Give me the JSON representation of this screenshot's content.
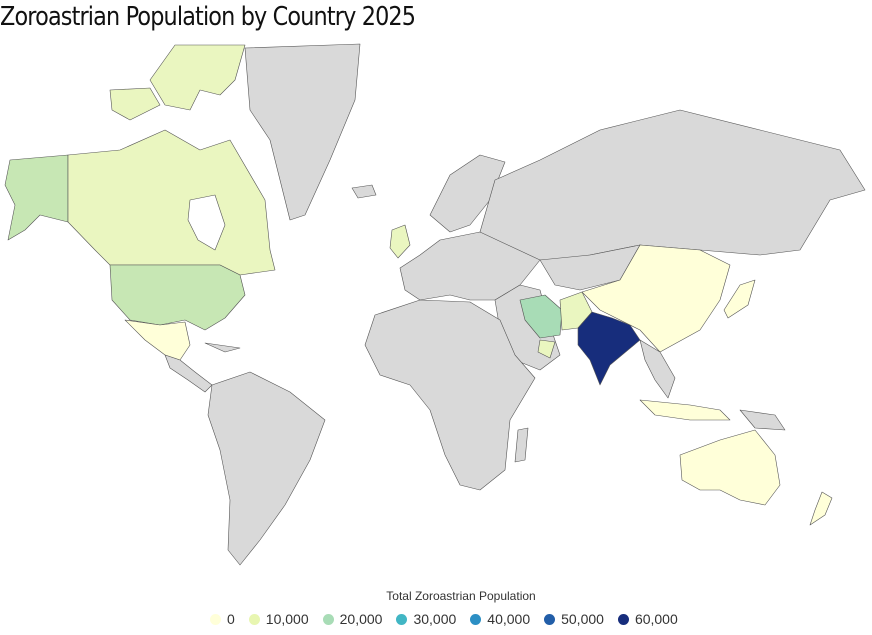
{
  "title": "Zoroastrian Population by Country 2025",
  "legend": {
    "title": "Total Zoroastrian Population",
    "items": [
      {
        "label": "0",
        "color": "#ffffd9"
      },
      {
        "label": "10,000",
        "color": "#e8f6b1"
      },
      {
        "label": "20,000",
        "color": "#a8dcb6"
      },
      {
        "label": "30,000",
        "color": "#41b6c4"
      },
      {
        "label": "40,000",
        "color": "#2c8fc4"
      },
      {
        "label": "50,000",
        "color": "#225ea8"
      },
      {
        "label": "60,000",
        "color": "#172d7c"
      }
    ]
  },
  "map": {
    "no_data_color": "#d9d9d9",
    "regions": [
      {
        "name": "India",
        "color": "#172d7c"
      },
      {
        "name": "Iran",
        "color": "#a8dcb6"
      },
      {
        "name": "United States",
        "color": "#c7e7b4"
      },
      {
        "name": "Alaska",
        "color": "#c7e7b4"
      },
      {
        "name": "Canada",
        "color": "#eaf6c0"
      },
      {
        "name": "United Kingdom",
        "color": "#eaf6c0"
      },
      {
        "name": "Pakistan",
        "color": "#eaf6c0"
      },
      {
        "name": "Mexico",
        "color": "#ffffd9"
      },
      {
        "name": "China",
        "color": "#ffffd9"
      },
      {
        "name": "Australia",
        "color": "#ffffd9"
      },
      {
        "name": "New Zealand",
        "color": "#ffffd9"
      },
      {
        "name": "Japan",
        "color": "#ffffd9"
      }
    ]
  }
}
